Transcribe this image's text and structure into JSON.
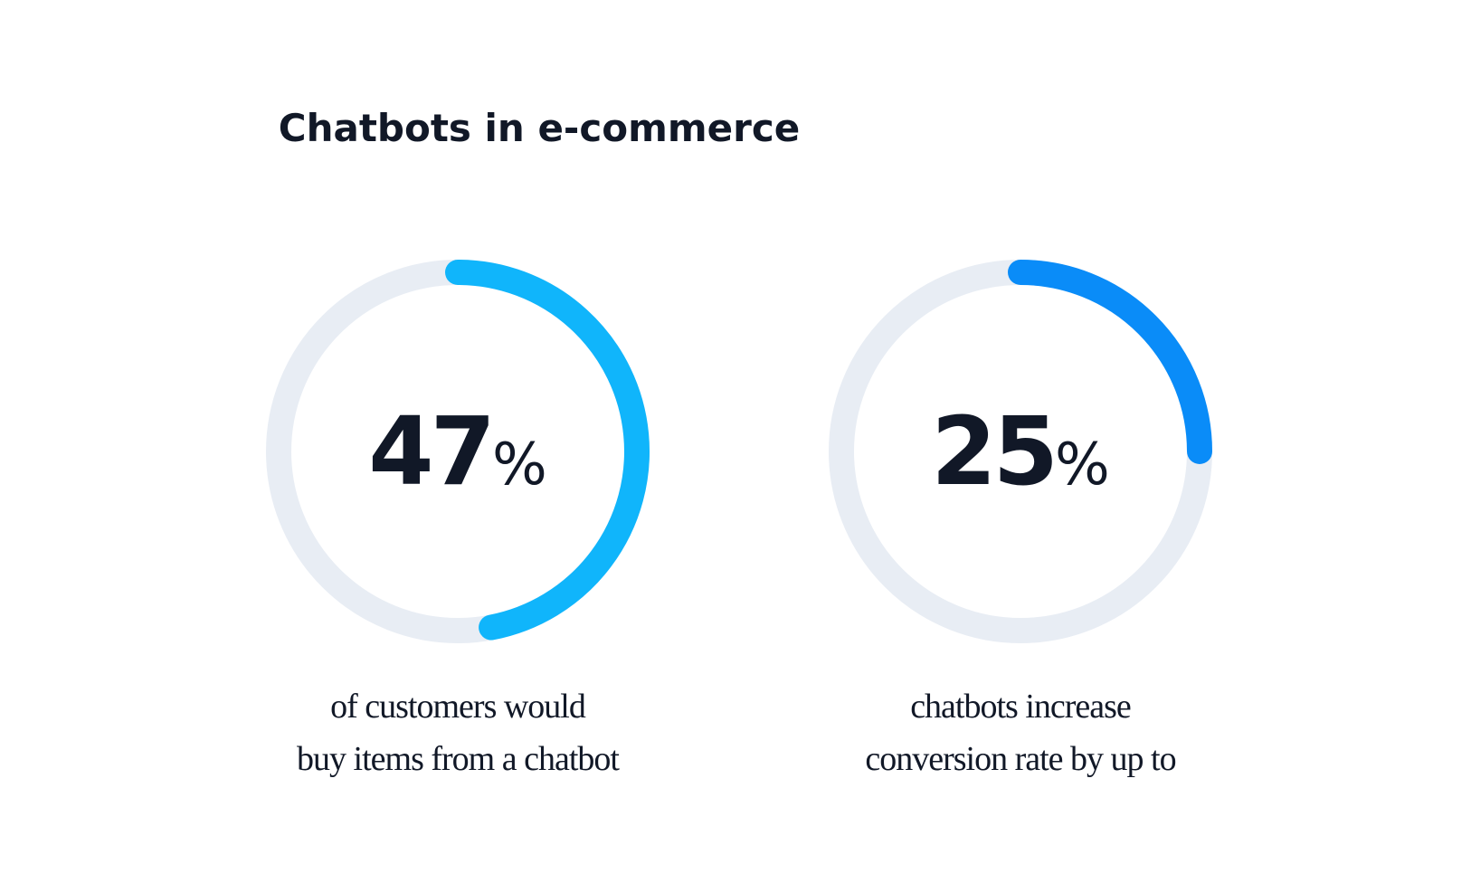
{
  "title": "Chatbots in e-commerce",
  "chart_data": [
    {
      "type": "donut",
      "values": [
        47
      ],
      "unit": "%",
      "ylim": [
        0,
        100
      ],
      "color": "#10b5fb",
      "track_color": "#e8edf4",
      "caption": [
        "of customers would",
        "buy items from a chatbot"
      ]
    },
    {
      "type": "donut",
      "values": [
        25
      ],
      "unit": "%",
      "ylim": [
        0,
        100
      ],
      "color": "#0a8cf8",
      "track_color": "#e8edf4",
      "caption": [
        "chatbots increase",
        "conversion rate by up to"
      ]
    }
  ]
}
